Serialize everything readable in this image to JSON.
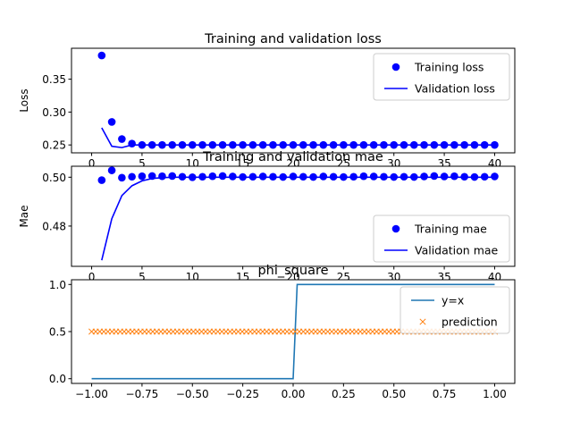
{
  "chart_data": [
    {
      "type": "scatter",
      "title": "Training and validation loss",
      "xlabel": "",
      "ylabel": "Loss",
      "xlim": [
        -2,
        42
      ],
      "ylim": [
        0.238,
        0.397
      ],
      "xticks": [
        0,
        5,
        10,
        15,
        20,
        25,
        30,
        35,
        40
      ],
      "yticks": [
        0.25,
        0.3,
        0.35
      ],
      "ytick_labels": [
        "0.25",
        "0.30",
        "0.35"
      ],
      "legend_position": "top-right",
      "series": [
        {
          "name": "Training loss",
          "kind": "markers",
          "color": "#0000ff",
          "x": [
            1,
            2,
            3,
            4,
            5,
            6,
            7,
            8,
            9,
            10,
            11,
            12,
            13,
            14,
            15,
            16,
            17,
            18,
            19,
            20,
            21,
            22,
            23,
            24,
            25,
            26,
            27,
            28,
            29,
            30,
            31,
            32,
            33,
            34,
            35,
            36,
            37,
            38,
            39,
            40
          ],
          "y": [
            0.386,
            0.285,
            0.259,
            0.252,
            0.25,
            0.25,
            0.25,
            0.25,
            0.25,
            0.25,
            0.25,
            0.25,
            0.25,
            0.25,
            0.25,
            0.25,
            0.25,
            0.25,
            0.25,
            0.25,
            0.25,
            0.25,
            0.25,
            0.25,
            0.25,
            0.25,
            0.25,
            0.25,
            0.25,
            0.25,
            0.25,
            0.25,
            0.25,
            0.25,
            0.25,
            0.25,
            0.25,
            0.25,
            0.25,
            0.25
          ]
        },
        {
          "name": "Validation loss",
          "kind": "line",
          "color": "#0000ff",
          "x": [
            1,
            2,
            3,
            4,
            5,
            6,
            7,
            8,
            9,
            10,
            11,
            12,
            13,
            14,
            15,
            16,
            17,
            18,
            19,
            20,
            21,
            22,
            23,
            24,
            25,
            26,
            27,
            28,
            29,
            30,
            31,
            32,
            33,
            34,
            35,
            36,
            37,
            38,
            39,
            40
          ],
          "y": [
            0.276,
            0.248,
            0.246,
            0.25,
            0.25,
            0.25,
            0.25,
            0.25,
            0.25,
            0.25,
            0.25,
            0.25,
            0.25,
            0.25,
            0.25,
            0.25,
            0.25,
            0.25,
            0.25,
            0.25,
            0.25,
            0.25,
            0.25,
            0.25,
            0.25,
            0.25,
            0.25,
            0.25,
            0.25,
            0.25,
            0.25,
            0.25,
            0.25,
            0.25,
            0.25,
            0.25,
            0.25,
            0.25,
            0.25,
            0.25
          ]
        }
      ]
    },
    {
      "type": "scatter",
      "title": "Training and validation mae",
      "xlabel": "",
      "ylabel": "Mae",
      "xlim": [
        -2,
        42
      ],
      "ylim": [
        0.4635,
        0.5045
      ],
      "xticks": [
        0,
        5,
        10,
        15,
        20,
        25,
        30,
        35,
        40
      ],
      "yticks": [
        0.48,
        0.5
      ],
      "ytick_labels": [
        "0.48",
        "0.50"
      ],
      "legend_position": "lower-right",
      "series": [
        {
          "name": "Training mae",
          "kind": "markers",
          "color": "#0000ff",
          "x": [
            1,
            2,
            3,
            4,
            5,
            6,
            7,
            8,
            9,
            10,
            11,
            12,
            13,
            14,
            15,
            16,
            17,
            18,
            19,
            20,
            21,
            22,
            23,
            24,
            25,
            26,
            27,
            28,
            29,
            30,
            31,
            32,
            33,
            34,
            35,
            36,
            37,
            38,
            39,
            40
          ],
          "y": [
            0.4988,
            0.5028,
            0.4998,
            0.5002,
            0.5004,
            0.5005,
            0.5004,
            0.5005,
            0.5002,
            0.5,
            0.5002,
            0.5004,
            0.5005,
            0.5003,
            0.5001,
            0.5002,
            0.5003,
            0.5002,
            0.5001,
            0.5003,
            0.5002,
            0.5001,
            0.5003,
            0.5002,
            0.5001,
            0.5002,
            0.5004,
            0.5003,
            0.5002,
            0.5001,
            0.5002,
            0.5001,
            0.5003,
            0.5005,
            0.5003,
            0.5004,
            0.5002,
            0.5001,
            0.5002,
            0.5003
          ]
        },
        {
          "name": "Validation mae",
          "kind": "line",
          "color": "#0000ff",
          "x": [
            1,
            2,
            3,
            4,
            5,
            6,
            7,
            8,
            9,
            10,
            11,
            12,
            13,
            14,
            15,
            16,
            17,
            18,
            19,
            20,
            21,
            22,
            23,
            24,
            25,
            26,
            27,
            28,
            29,
            30,
            31,
            32,
            33,
            34,
            35,
            36,
            37,
            38,
            39,
            40
          ],
          "y": [
            0.466,
            0.483,
            0.4925,
            0.4965,
            0.4985,
            0.4995,
            0.4998,
            0.5,
            0.5,
            0.5,
            0.5,
            0.5,
            0.5,
            0.5,
            0.5,
            0.5,
            0.5,
            0.5,
            0.5,
            0.5,
            0.5,
            0.5,
            0.5,
            0.5,
            0.5,
            0.5,
            0.5,
            0.5,
            0.5,
            0.5,
            0.5,
            0.5,
            0.5,
            0.5,
            0.5,
            0.5,
            0.5,
            0.5,
            0.5,
            0.5
          ]
        }
      ]
    },
    {
      "type": "line",
      "title": "phi_square",
      "xlabel": "",
      "ylabel": "",
      "xlim": [
        -1.1,
        1.1
      ],
      "ylim": [
        -0.05,
        1.05
      ],
      "xticks": [
        -1.0,
        -0.75,
        -0.5,
        -0.25,
        0.0,
        0.25,
        0.5,
        0.75,
        1.0
      ],
      "xtick_labels": [
        "−1.00",
        "−0.75",
        "−0.50",
        "−0.25",
        "0.00",
        "0.25",
        "0.50",
        "0.75",
        "1.00"
      ],
      "yticks": [
        0.0,
        0.5,
        1.0
      ],
      "ytick_labels": [
        "0.0",
        "0.5",
        "1.0"
      ],
      "legend_position": "top-right",
      "series": [
        {
          "name": "y=x",
          "kind": "line",
          "color": "#1f77b4",
          "x": [
            -1.0,
            0.0,
            0.02,
            1.0
          ],
          "y": [
            0.0,
            0.0,
            1.0,
            1.0
          ]
        },
        {
          "name": "prediction",
          "kind": "x-markers",
          "color": "#ff7f0e",
          "x_start": -1.0,
          "x_end": 1.0,
          "count": 100,
          "y_constant": 0.5
        }
      ]
    }
  ]
}
